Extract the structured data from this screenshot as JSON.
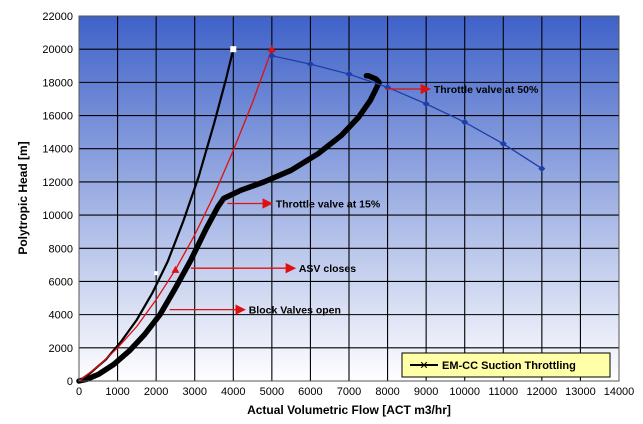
{
  "chart_data": {
    "type": "line",
    "xlabel": "Actual Volumetric Flow [ACT m3/hr]",
    "ylabel": "Polytropic Head [m]",
    "xlim": [
      0,
      14000
    ],
    "ylim": [
      0,
      22000
    ],
    "x_ticks": [
      "0",
      "1000",
      "2000",
      "3000",
      "4000",
      "5000",
      "6000",
      "7000",
      "8000",
      "9000",
      "10000",
      "11000",
      "12000",
      "13000",
      "14000"
    ],
    "y_ticks": [
      "0",
      "2000",
      "4000",
      "6000",
      "8000",
      "10000",
      "12000",
      "14000",
      "16000",
      "18000",
      "20000",
      "22000"
    ],
    "grid": true,
    "legend_position": "bottom-right",
    "colors": {
      "plot_top": "#3f62c8",
      "plot_bottom": "#ffffff",
      "compressor_curve": "#1f3fa8",
      "red_curve": "#e01010",
      "black_curve": "#000000",
      "legend_bg": "#ffffa8"
    },
    "series": [
      {
        "name": "EM-CC Suction Throttling",
        "style": "thick-black",
        "x": [
          0,
          200,
          500,
          900,
          1300,
          1700,
          2100,
          2500,
          2900,
          3300,
          3600,
          3750,
          4200,
          4800,
          5500,
          6200,
          6800,
          7250,
          7550,
          7720,
          7780,
          7700,
          7600,
          7500,
          7450
        ],
        "y": [
          0,
          100,
          400,
          1000,
          1800,
          2800,
          4000,
          5600,
          7300,
          9200,
          10500,
          11000,
          11500,
          12000,
          12700,
          13700,
          14800,
          15900,
          16900,
          17700,
          18000,
          18200,
          18300,
          18400,
          18400
        ]
      },
      {
        "style": "thin-black",
        "x": [
          0,
          300,
          700,
          1100,
          1500,
          1900,
          2300,
          2700,
          3100,
          3500,
          3800,
          4000
        ],
        "y": [
          0,
          500,
          1300,
          2400,
          3700,
          5300,
          7200,
          9600,
          12300,
          15500,
          18100,
          20000
        ]
      },
      {
        "style": "red-triangles",
        "x": [
          0,
          500,
          1000,
          1500,
          2000,
          2500,
          3000,
          3500,
          4000,
          4500,
          5000
        ],
        "y": [
          0,
          900,
          2000,
          3300,
          4900,
          6700,
          8800,
          11200,
          13900,
          16800,
          20000
        ]
      },
      {
        "style": "blue-diamonds",
        "x": [
          5000,
          6000,
          7000,
          8000,
          9000,
          10000,
          11000,
          12000
        ],
        "y": [
          19600,
          19100,
          18500,
          17700,
          16700,
          15600,
          14300,
          12800
        ]
      }
    ],
    "annotations": [
      {
        "text": "Throttle valve at 50%",
        "x": 7700,
        "y": 17600
      },
      {
        "text": "Throttle valve at 15%",
        "x": 3750,
        "y": 10900
      },
      {
        "text": "ASV closes",
        "x": 2800,
        "y": 6800
      },
      {
        "text": "Block Valves open",
        "x": 2300,
        "y": 4300
      }
    ],
    "legend": {
      "label": "EM-CC Suction Throttling"
    }
  }
}
